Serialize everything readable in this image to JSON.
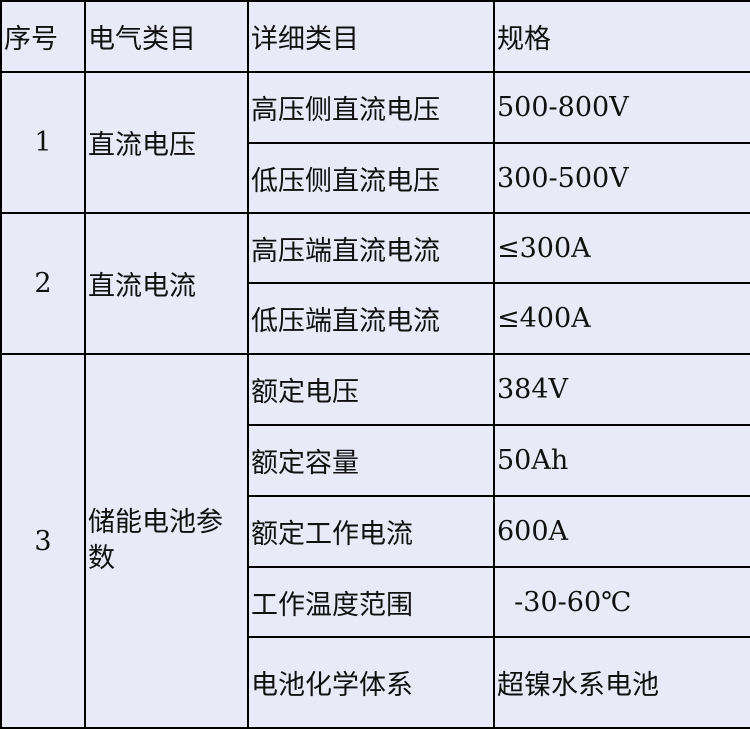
{
  "header": [
    "序号",
    "电气类目",
    "详细类目",
    "规格"
  ],
  "groups": [
    {
      "index": "1",
      "category": "直流电压",
      "rows": [
        {
          "detail": "高压侧直流电压",
          "spec": "500-800V"
        },
        {
          "detail": "低压侧直流电压",
          "spec": "300-500V"
        }
      ]
    },
    {
      "index": "2",
      "category": "直流电流",
      "rows": [
        {
          "detail": "高压端直流电流",
          "spec": "≤300A"
        },
        {
          "detail": "低压端直流电流",
          "spec": "≤400A"
        }
      ]
    },
    {
      "index": "3",
      "category": "储能电池参数",
      "rows": [
        {
          "detail": "额定电压",
          "spec": "384V"
        },
        {
          "detail": "额定容量",
          "spec": "50Ah"
        },
        {
          "detail": "额定工作电流",
          "spec": "600A"
        },
        {
          "detail": "工作温度范围",
          "spec": "  -30-60℃"
        },
        {
          "detail": "电池化学体系",
          "spec": "超镍水系电池"
        }
      ]
    }
  ]
}
